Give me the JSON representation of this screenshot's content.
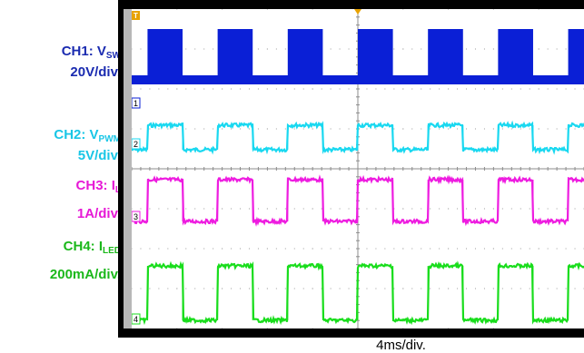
{
  "chart_data": {
    "type": "line",
    "title": "",
    "xlabel": "4ms/div.",
    "x_unit_per_div": "4ms",
    "divisions": {
      "x": 10,
      "y": 8
    },
    "grid": true,
    "series": [
      {
        "name": "CH1",
        "signal": "V",
        "subscript": "SW",
        "scale": "20V/div.",
        "color": "#0a1fd6",
        "channel_marker": "1",
        "waveform": "PWM-gated switching burst",
        "pwm_period_ms": 6.2,
        "duty": 0.5
      },
      {
        "name": "CH2",
        "signal": "V",
        "subscript": "PWM",
        "scale": "5V/div.",
        "color": "#19d8f0",
        "channel_marker": "2",
        "waveform": "square",
        "pwm_period_ms": 6.2,
        "duty": 0.5
      },
      {
        "name": "CH3",
        "signal": "I",
        "subscript": "L",
        "scale": "1A/div.",
        "color": "#ee1ce0",
        "channel_marker": "3",
        "waveform": "square",
        "pwm_period_ms": 6.2,
        "duty": 0.5
      },
      {
        "name": "CH4",
        "signal": "I",
        "subscript": "LED",
        "scale": "200mA/div.",
        "color": "#19dd1c",
        "channel_marker": "4",
        "waveform": "square",
        "pwm_period_ms": 6.2,
        "duty": 0.5
      }
    ],
    "trigger_marker": "T"
  },
  "labels": {
    "ch1": {
      "name": "CH1: V",
      "sub": "SW",
      "scale": "20V/div."
    },
    "ch2": {
      "name": "CH2: V",
      "sub": "PWM",
      "scale": "5V/div."
    },
    "ch3": {
      "name": "CH3: I",
      "sub": "L",
      "scale": "1A/div."
    },
    "ch4": {
      "name": "CH4: I",
      "sub": "LED",
      "scale": "200mA/div."
    }
  },
  "colors": {
    "ch1": "#1a2bb0",
    "ch2": "#19c6e6",
    "ch3": "#e619d6",
    "ch4": "#1bb81b",
    "screen": "#ffffff",
    "frame": "#000000"
  }
}
